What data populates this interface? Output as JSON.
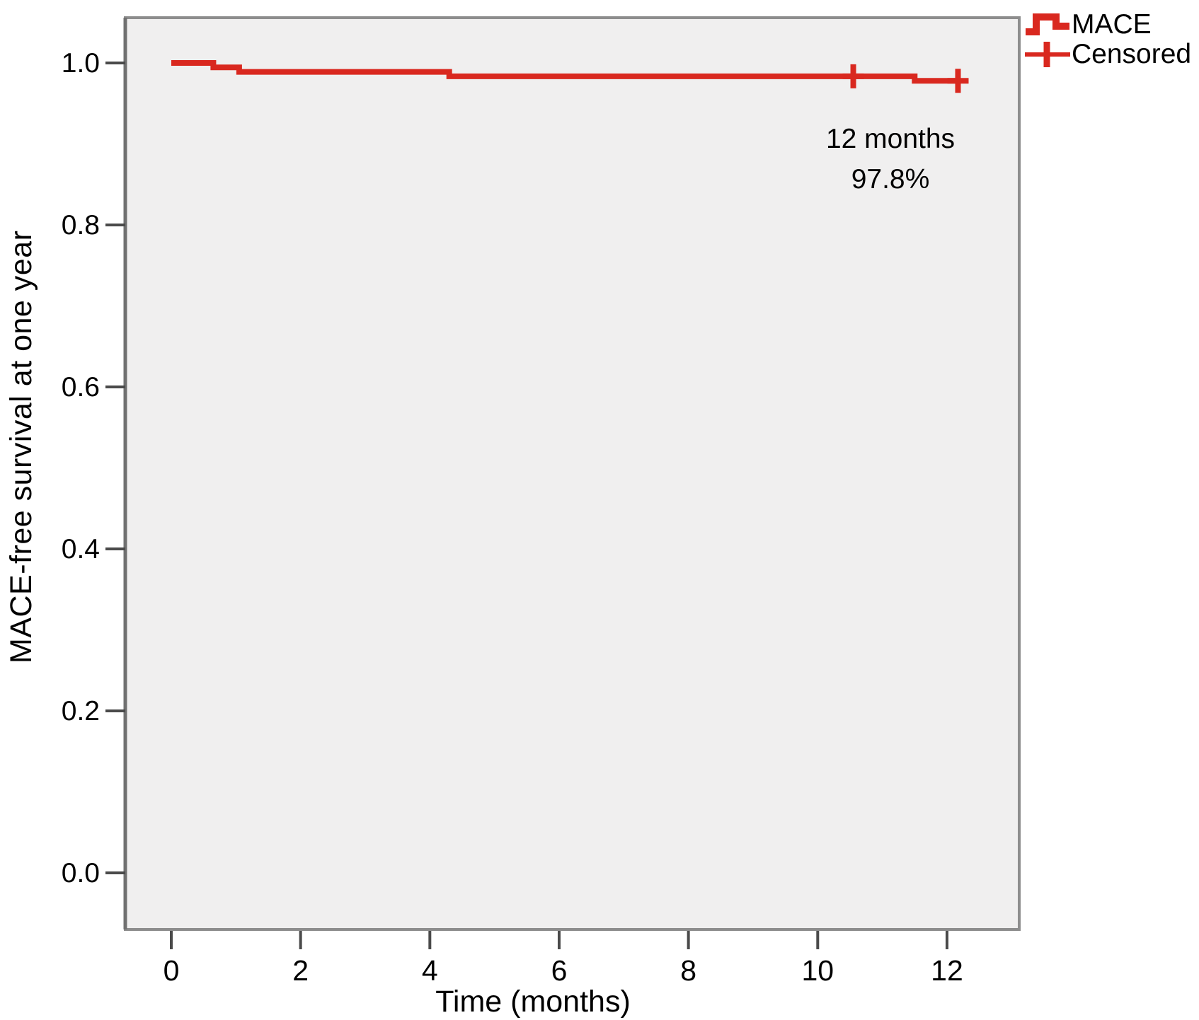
{
  "chart_data": {
    "type": "line",
    "subtype": "kaplan-meier-step",
    "title": "",
    "xlabel": "Time (months)",
    "ylabel": "MACE-free survival at one year",
    "x_ticks": [
      0,
      2,
      4,
      6,
      8,
      10,
      12
    ],
    "y_ticks": [
      "0.0",
      "0.2",
      "0.4",
      "0.6",
      "0.8",
      "1.0"
    ],
    "xlim": [
      -0.72,
      13.1
    ],
    "ylim": [
      -0.07,
      1.056
    ],
    "grid": false,
    "legend_position": "top-right-outside",
    "series": [
      {
        "name": "MACE",
        "color": "#d9281f",
        "steps": [
          [
            0,
            1.0
          ],
          [
            0.65,
            0.9945
          ],
          [
            1.05,
            0.989
          ],
          [
            4.3,
            0.9835
          ],
          [
            11.5,
            0.978
          ],
          [
            12.2,
            0.978
          ]
        ],
        "censored_points": [
          [
            10.55,
            0.9835
          ],
          [
            12.17,
            0.978
          ]
        ]
      }
    ],
    "annotation": {
      "line1": "12 months",
      "line2": "97.8%"
    },
    "survival_at_12_months": "97.8%"
  },
  "legend": {
    "items": [
      {
        "label": "MACE",
        "glyph": "step-line-icon"
      },
      {
        "label": "Censored",
        "glyph": "plus-icon"
      }
    ]
  },
  "colors": {
    "curve": "#d9281f",
    "plot_bg": "#f0efef",
    "frame": "#8d8d8d",
    "spine": "#707070",
    "tick": "#4a4a4a",
    "text": "#000000"
  }
}
